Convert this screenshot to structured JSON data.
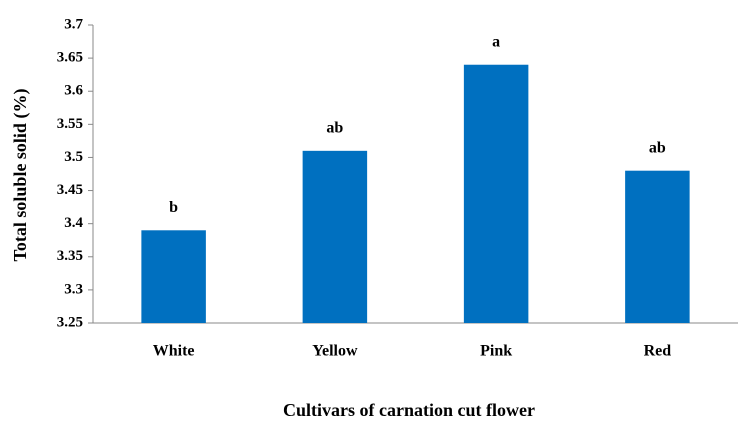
{
  "chart_data": {
    "type": "bar",
    "x_label": "Cultivars of carnation cut flower",
    "y_label": "Total soluble solid (%)",
    "categories": [
      "White",
      "Yellow",
      "Pink",
      "Red"
    ],
    "values": [
      3.39,
      3.51,
      3.64,
      3.48
    ],
    "annotations": [
      "b",
      "ab",
      "a",
      "ab"
    ],
    "color": "#0070c0",
    "ylim": [
      3.25,
      3.7
    ],
    "yticks": [
      3.25,
      3.3,
      3.35,
      3.4,
      3.45,
      3.5,
      3.55,
      3.6,
      3.65,
      3.7
    ],
    "grid": false
  }
}
